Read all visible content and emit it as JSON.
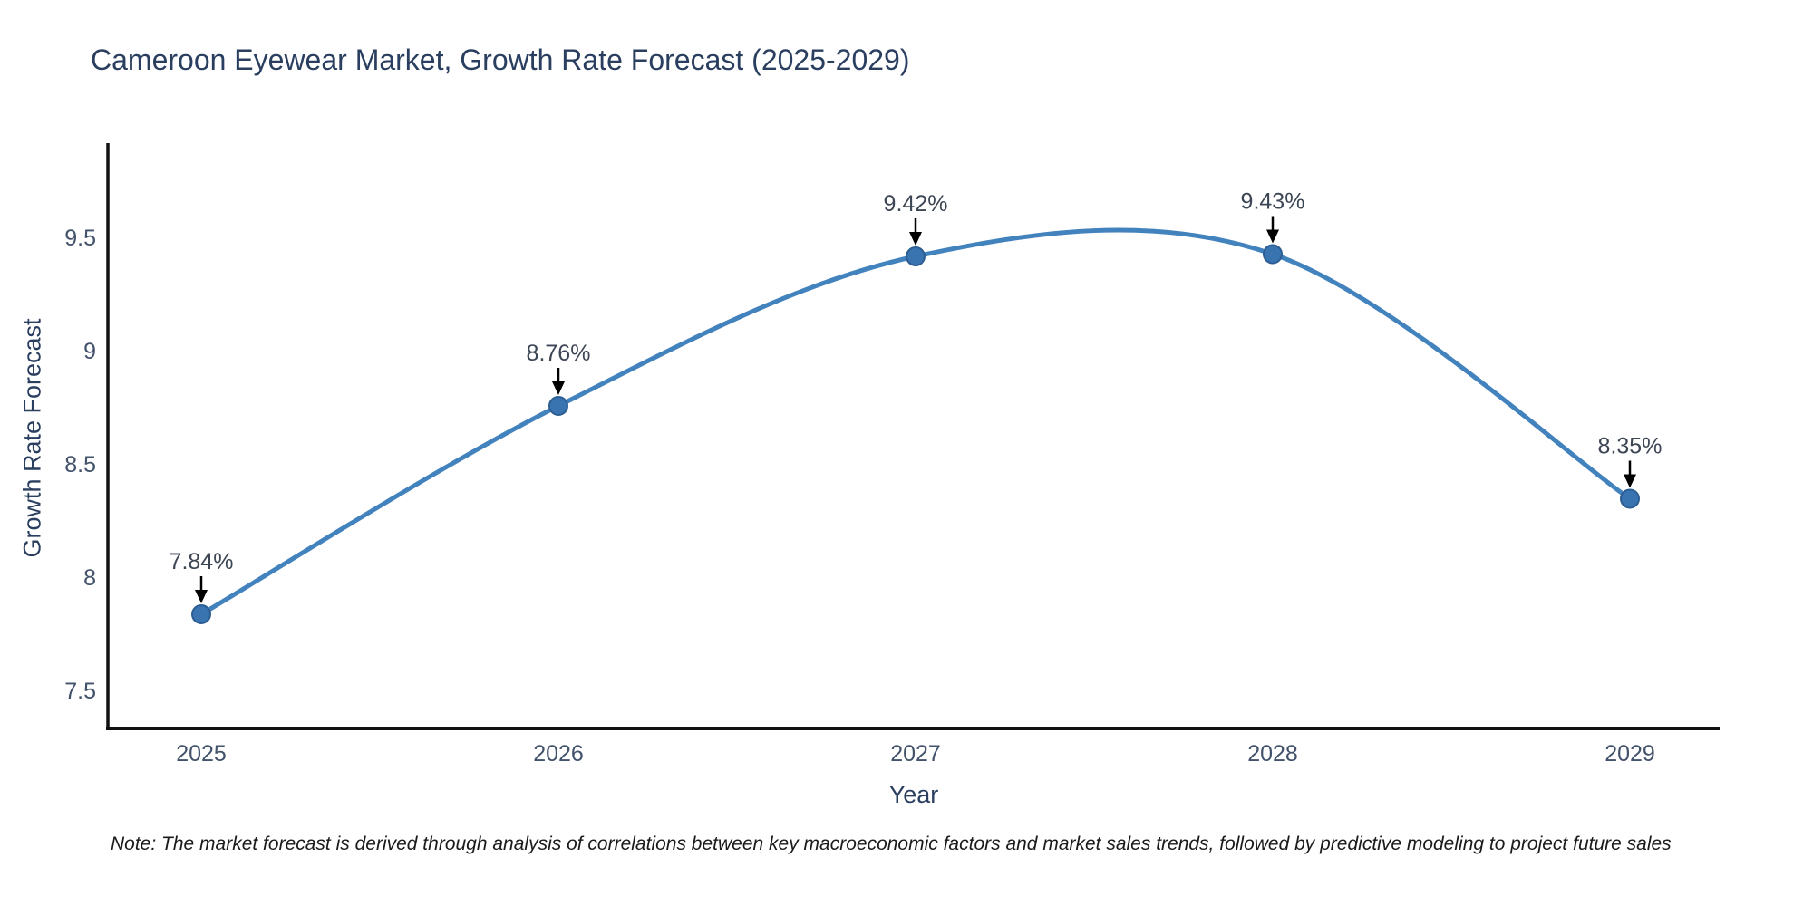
{
  "title": "Cameroon Eyewear Market, Growth Rate Forecast (2025-2029)",
  "note": "Note: The market forecast is derived through analysis of correlations between key macroeconomic factors and market sales trends, followed by predictive modeling to project future sales",
  "chart_data": {
    "type": "line",
    "title": "Cameroon Eyewear Market, Growth Rate Forecast (2025-2029)",
    "xlabel": "Year",
    "ylabel": "Growth Rate Forecast",
    "categories": [
      "2025",
      "2026",
      "2027",
      "2028",
      "2029"
    ],
    "series": [
      {
        "name": "Growth Rate Forecast",
        "values": [
          7.84,
          8.76,
          9.42,
          9.43,
          8.35
        ]
      }
    ],
    "point_labels": [
      "7.84%",
      "8.76%",
      "9.42%",
      "9.43%",
      "8.35%"
    ],
    "yticks": [
      7.5,
      8,
      8.5,
      9,
      9.5
    ],
    "ylim": [
      7.35,
      9.95
    ],
    "grid": false,
    "line_style": "spline",
    "legend": "none",
    "colors": {
      "line": "#4282bd",
      "marker_fill": "#3a74b0",
      "marker_edge": "#2d5e93",
      "axis": "#111111",
      "arrow": "#000000",
      "title_text": "#2a3f5f",
      "tick_text": "#42526b",
      "annotation_text": "#3d4654"
    }
  }
}
